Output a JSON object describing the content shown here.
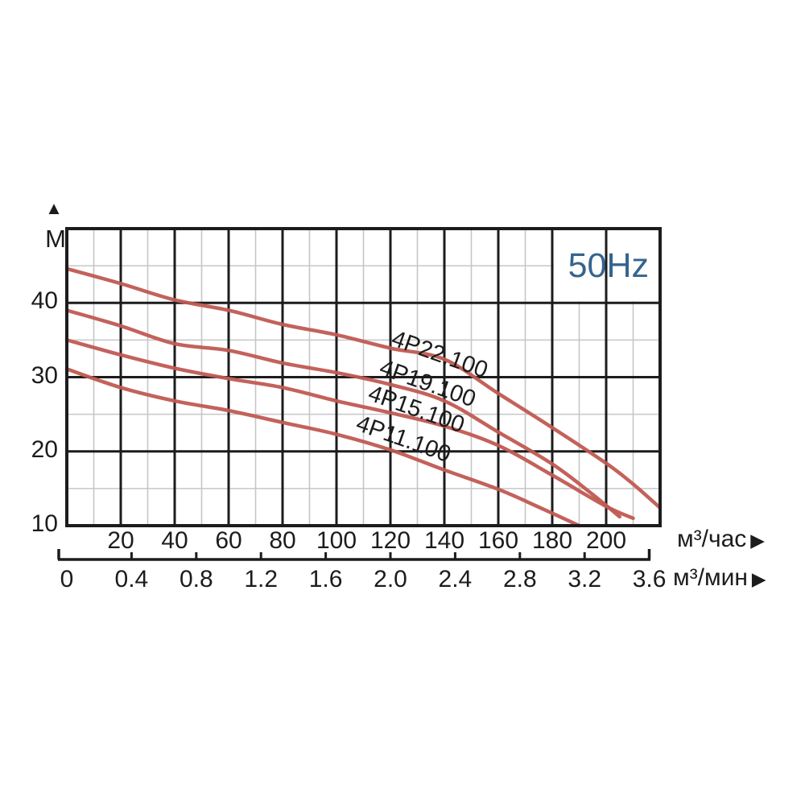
{
  "frequency_badge": "50Hz",
  "arrows": {
    "up": "▲",
    "right": "▶"
  },
  "colors": {
    "background": "#ffffff",
    "curve": "#c05a52",
    "grid_major": "#1c1c1c",
    "grid_minor": "#c6c6c6",
    "frequency_text": "#36648e",
    "text": "#1c1c1c"
  },
  "y_axis": {
    "unit_label": "M",
    "ticks": [
      "40",
      "30",
      "20",
      "10"
    ],
    "tick_values": [
      40,
      30,
      20,
      10
    ],
    "min": 10,
    "max": 50,
    "minor_step": 5
  },
  "x_axis_hour": {
    "unit_label": "м³/час",
    "ticks": [
      "20",
      "40",
      "60",
      "80",
      "100",
      "120",
      "140",
      "160",
      "180",
      "200"
    ],
    "tick_values": [
      20,
      40,
      60,
      80,
      100,
      120,
      140,
      160,
      180,
      200
    ],
    "max": 220,
    "minor_step": 10
  },
  "x_axis_min": {
    "unit_label": "м³/мин",
    "ticks": [
      "0",
      "0.4",
      "0.8",
      "1.2",
      "1.6",
      "2.0",
      "2.4",
      "2.8",
      "3.2",
      "3.6"
    ],
    "tick_values": [
      0,
      0.4,
      0.8,
      1.2,
      1.6,
      2.0,
      2.4,
      2.8,
      3.2,
      3.6
    ],
    "hour_per_min": 60
  },
  "chart_data": {
    "type": "line",
    "title": "",
    "frequency": "50Hz",
    "xlabel_primary": "м³/час",
    "xlabel_secondary": "м³/мин",
    "ylabel": "M",
    "xlim": [
      0,
      220
    ],
    "ylim": [
      10,
      50
    ],
    "grid": "major and minor on",
    "legend_position": "labels along curves",
    "series": [
      {
        "name": "4P22.100",
        "points": [
          [
            0,
            44.6
          ],
          [
            20,
            42.6
          ],
          [
            40,
            40.4
          ],
          [
            60,
            39.0
          ],
          [
            80,
            37.1
          ],
          [
            100,
            35.7
          ],
          [
            120,
            33.9
          ],
          [
            140,
            32.4
          ],
          [
            160,
            27.8
          ],
          [
            180,
            23.2
          ],
          [
            200,
            18.4
          ],
          [
            210,
            15.6
          ],
          [
            220,
            12.4
          ]
        ]
      },
      {
        "name": "4P19.100",
        "points": [
          [
            0,
            39.0
          ],
          [
            20,
            36.9
          ],
          [
            40,
            34.5
          ],
          [
            60,
            33.6
          ],
          [
            80,
            31.9
          ],
          [
            100,
            30.6
          ],
          [
            120,
            29.0
          ],
          [
            140,
            26.8
          ],
          [
            160,
            22.6
          ],
          [
            180,
            18.3
          ],
          [
            195,
            14.2
          ],
          [
            205,
            11.2
          ]
        ]
      },
      {
        "name": "4P15.100",
        "points": [
          [
            0,
            35.0
          ],
          [
            20,
            33.0
          ],
          [
            40,
            31.2
          ],
          [
            60,
            29.8
          ],
          [
            80,
            28.6
          ],
          [
            100,
            26.8
          ],
          [
            120,
            25.2
          ],
          [
            140,
            23.4
          ],
          [
            160,
            20.8
          ],
          [
            180,
            16.8
          ],
          [
            200,
            12.6
          ],
          [
            210,
            11.0
          ]
        ]
      },
      {
        "name": "4P11.100",
        "points": [
          [
            0,
            31.1
          ],
          [
            20,
            28.6
          ],
          [
            40,
            26.8
          ],
          [
            60,
            25.5
          ],
          [
            80,
            23.9
          ],
          [
            100,
            22.3
          ],
          [
            120,
            20.2
          ],
          [
            140,
            17.5
          ],
          [
            160,
            14.9
          ],
          [
            175,
            12.5
          ],
          [
            190,
            10.0
          ]
        ]
      }
    ]
  }
}
